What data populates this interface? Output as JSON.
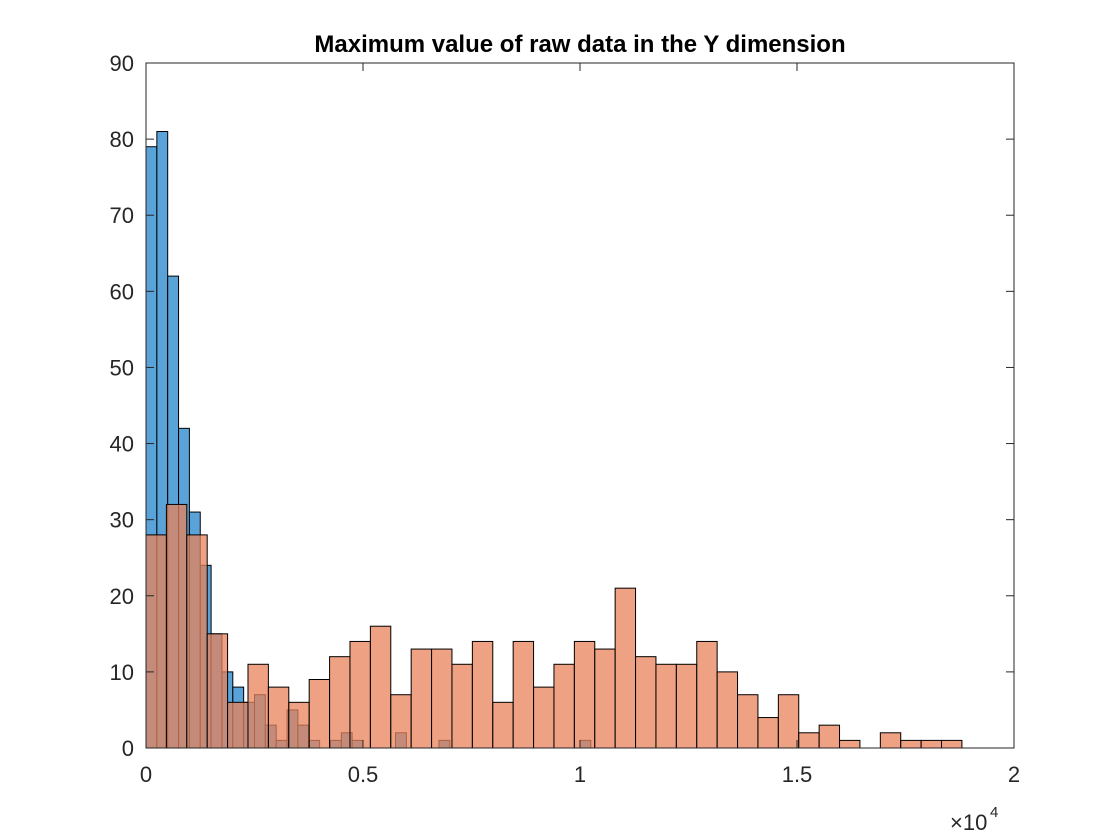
{
  "chart_data": {
    "type": "bar",
    "title": "Maximum value of raw data in the Y dimension",
    "xlabel": "",
    "ylabel": "",
    "xlim": [
      0,
      20000
    ],
    "ylim": [
      0,
      90
    ],
    "x_ticks": [
      0,
      5000,
      10000,
      15000,
      20000
    ],
    "x_tick_labels": [
      "0",
      "0.5",
      "1",
      "1.5",
      "2"
    ],
    "y_ticks": [
      0,
      10,
      20,
      30,
      40,
      50,
      60,
      70,
      80,
      90
    ],
    "y_tick_labels": [
      "0",
      "10",
      "20",
      "30",
      "40",
      "50",
      "60",
      "70",
      "80",
      "90"
    ],
    "x_exponent_base": "×10",
    "x_exponent": "4",
    "grid": false,
    "series": [
      {
        "color": "#5aa3d9",
        "bins": [
          {
            "x0": 0,
            "x1": 250,
            "count": 79
          },
          {
            "x0": 250,
            "x1": 500,
            "count": 81
          },
          {
            "x0": 500,
            "x1": 750,
            "count": 62
          },
          {
            "x0": 750,
            "x1": 1000,
            "count": 42
          },
          {
            "x0": 1000,
            "x1": 1250,
            "count": 31
          },
          {
            "x0": 1250,
            "x1": 1500,
            "count": 24
          },
          {
            "x0": 1500,
            "x1": 1750,
            "count": 15
          },
          {
            "x0": 1750,
            "x1": 2000,
            "count": 10
          },
          {
            "x0": 2000,
            "x1": 2250,
            "count": 8
          },
          {
            "x0": 2250,
            "x1": 2500,
            "count": 6
          },
          {
            "x0": 2500,
            "x1": 2750,
            "count": 7
          },
          {
            "x0": 2750,
            "x1": 3000,
            "count": 3
          },
          {
            "x0": 3000,
            "x1": 3250,
            "count": 1
          },
          {
            "x0": 3250,
            "x1": 3500,
            "count": 5
          },
          {
            "x0": 3500,
            "x1": 3750,
            "count": 3
          },
          {
            "x0": 3750,
            "x1": 4000,
            "count": 1
          },
          {
            "x0": 4000,
            "x1": 4250,
            "count": 0
          },
          {
            "x0": 4250,
            "x1": 4500,
            "count": 1
          },
          {
            "x0": 4500,
            "x1": 4750,
            "count": 2
          },
          {
            "x0": 4750,
            "x1": 5000,
            "count": 1
          },
          {
            "x0": 5000,
            "x1": 5250,
            "count": 0
          },
          {
            "x0": 5750,
            "x1": 6000,
            "count": 2
          },
          {
            "x0": 6750,
            "x1": 7000,
            "count": 1
          },
          {
            "x0": 10000,
            "x1": 10250,
            "count": 1
          }
        ]
      },
      {
        "color": "#e8835a",
        "bins": [
          {
            "x0": 0,
            "x1": 470,
            "count": 28
          },
          {
            "x0": 470,
            "x1": 940,
            "count": 32
          },
          {
            "x0": 940,
            "x1": 1410,
            "count": 28
          },
          {
            "x0": 1410,
            "x1": 1880,
            "count": 15
          },
          {
            "x0": 1880,
            "x1": 2350,
            "count": 6
          },
          {
            "x0": 2350,
            "x1": 2820,
            "count": 11
          },
          {
            "x0": 2820,
            "x1": 3290,
            "count": 8
          },
          {
            "x0": 3290,
            "x1": 3760,
            "count": 6
          },
          {
            "x0": 3760,
            "x1": 4230,
            "count": 9
          },
          {
            "x0": 4230,
            "x1": 4700,
            "count": 12
          },
          {
            "x0": 4700,
            "x1": 5170,
            "count": 14
          },
          {
            "x0": 5170,
            "x1": 5640,
            "count": 16
          },
          {
            "x0": 5640,
            "x1": 6110,
            "count": 7
          },
          {
            "x0": 6110,
            "x1": 6580,
            "count": 13
          },
          {
            "x0": 6580,
            "x1": 7050,
            "count": 13
          },
          {
            "x0": 7050,
            "x1": 7520,
            "count": 11
          },
          {
            "x0": 7520,
            "x1": 7990,
            "count": 14
          },
          {
            "x0": 7990,
            "x1": 8460,
            "count": 6
          },
          {
            "x0": 8460,
            "x1": 8930,
            "count": 14
          },
          {
            "x0": 8930,
            "x1": 9400,
            "count": 8
          },
          {
            "x0": 9400,
            "x1": 9870,
            "count": 11
          },
          {
            "x0": 9870,
            "x1": 10340,
            "count": 14
          },
          {
            "x0": 10340,
            "x1": 10810,
            "count": 13
          },
          {
            "x0": 10810,
            "x1": 11280,
            "count": 21
          },
          {
            "x0": 11280,
            "x1": 11750,
            "count": 12
          },
          {
            "x0": 11750,
            "x1": 12220,
            "count": 11
          },
          {
            "x0": 12220,
            "x1": 12690,
            "count": 11
          },
          {
            "x0": 12690,
            "x1": 13160,
            "count": 14
          },
          {
            "x0": 13160,
            "x1": 13630,
            "count": 10
          },
          {
            "x0": 13630,
            "x1": 14100,
            "count": 7
          },
          {
            "x0": 14100,
            "x1": 14570,
            "count": 4
          },
          {
            "x0": 14570,
            "x1": 15040,
            "count": 7
          },
          {
            "x0": 15040,
            "x1": 15510,
            "count": 2
          },
          {
            "x0": 15510,
            "x1": 15980,
            "count": 3
          },
          {
            "x0": 15980,
            "x1": 16450,
            "count": 1
          },
          {
            "x0": 16450,
            "x1": 16920,
            "count": 0
          },
          {
            "x0": 16920,
            "x1": 17390,
            "count": 2
          },
          {
            "x0": 17390,
            "x1": 17860,
            "count": 1
          },
          {
            "x0": 17860,
            "x1": 18330,
            "count": 1
          },
          {
            "x0": 18330,
            "x1": 18800,
            "count": 1
          }
        ]
      }
    ]
  }
}
